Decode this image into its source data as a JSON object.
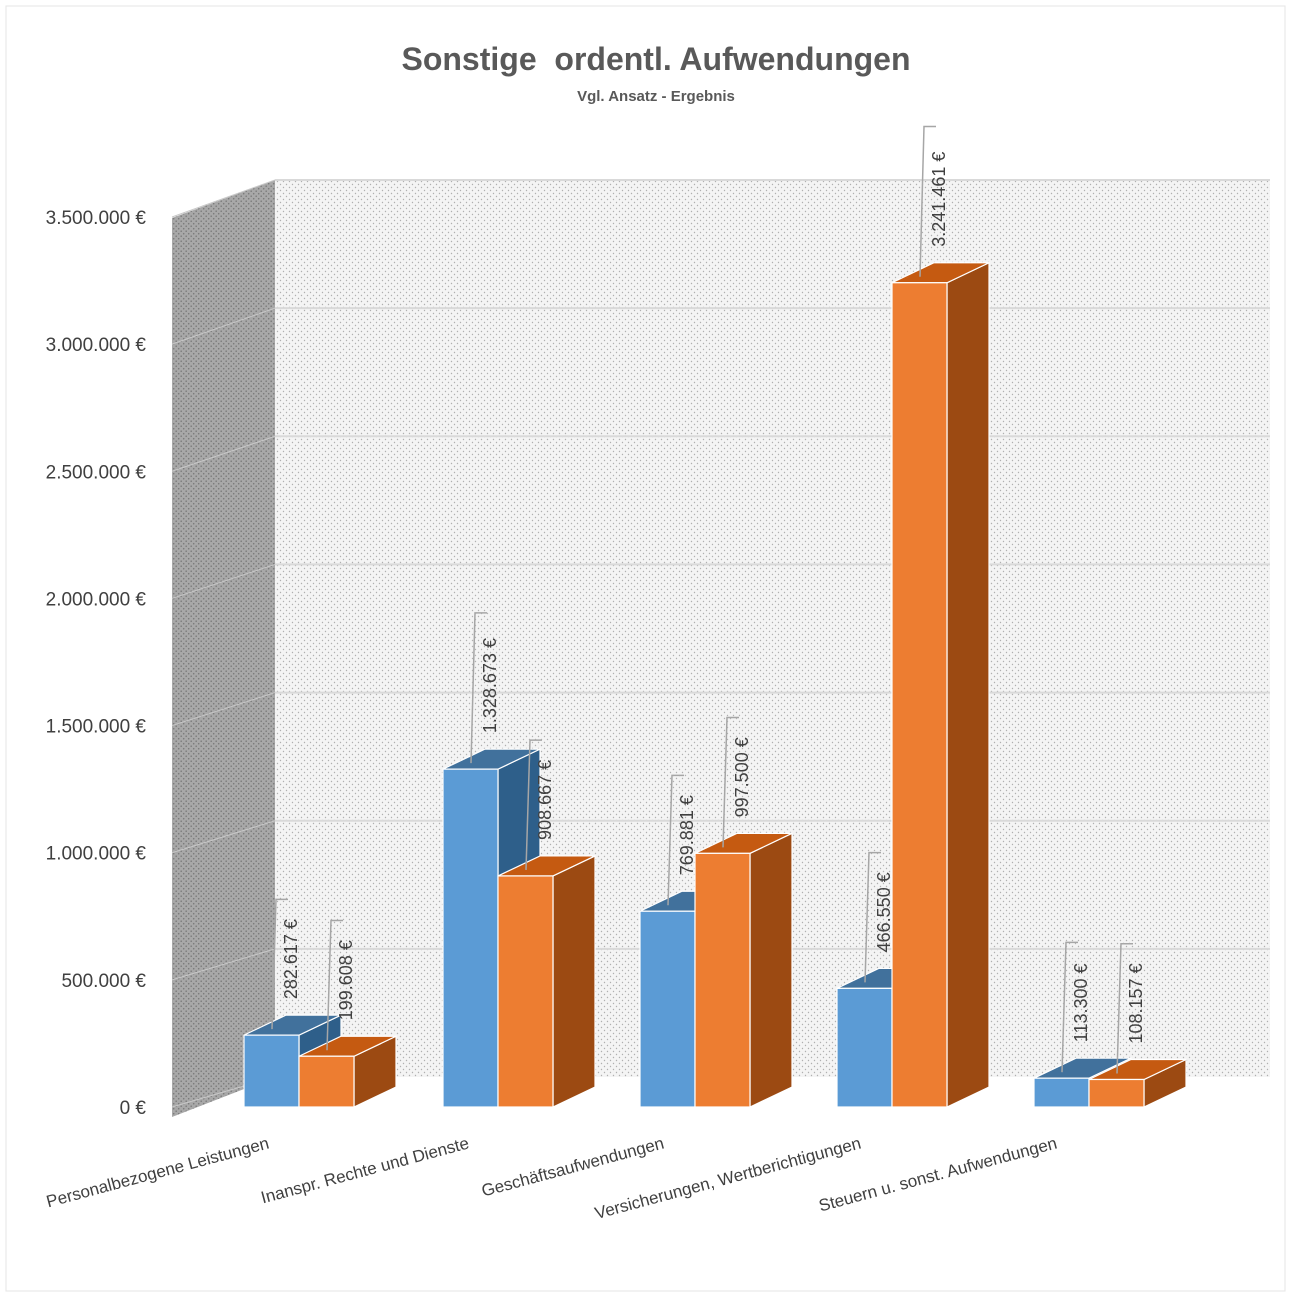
{
  "chart_data": {
    "type": "bar",
    "title": "Sonstige  ordentl. Aufwendungen",
    "subtitle": "Vgl. Ansatz - Ergebnis",
    "categories": [
      "Personalbezogene Leistungen",
      "Inanspr. Rechte und Dienste",
      "Geschäftsaufwendungen",
      "Versicherungen, Wertberichtigungen",
      "Steuern u. sonst. Aufwendungen"
    ],
    "series": [
      {
        "values": [
          282617,
          1328673,
          769881,
          466550,
          113300
        ],
        "labels": [
          "282.617 €",
          "1.328.673 €",
          "769.881 €",
          "466.550 €",
          "113.300 €"
        ]
      },
      {
        "values": [
          199608,
          908667,
          997500,
          3241461,
          108157
        ],
        "labels": [
          "199.608 €",
          "908.667 €",
          "997.500 €",
          "3.241.461 €",
          "108.157 €"
        ]
      }
    ],
    "ylim": [
      0,
      3500000
    ],
    "yticks": [
      "0 €",
      "500.000 €",
      "1.000.000 €",
      "1.500.000 €",
      "2.000.000 €",
      "2.500.000 €",
      "3.000.000 €",
      "3.500.000 €"
    ],
    "grid": true,
    "legend": "none",
    "style": "3d-clustered-column",
    "colors": {
      "series1": {
        "front": "#5b9bd5",
        "top": "#41719c",
        "side": "#2e5f8a"
      },
      "series2": {
        "front": "#ed7d31",
        "top": "#c55a11",
        "side": "#9c4a12"
      },
      "wall": "#f2f2f2",
      "side_wall": "#a6a6a6",
      "grid": "#d9d9d9",
      "text": "#404040",
      "title": "#595959"
    }
  }
}
